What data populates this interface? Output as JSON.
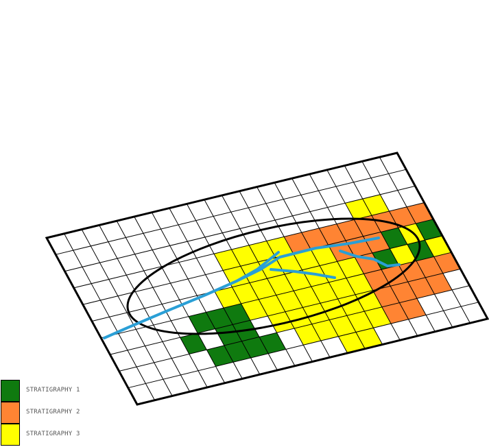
{
  "legend": [
    {
      "label": "STRATIGRAPHY 1",
      "color": "#0f7a0f"
    },
    {
      "label": "STRATIGRAPHY 2",
      "color": "#ff8433"
    },
    {
      "label": "STRATIGRAPHY 3",
      "color": "#ffff00"
    }
  ],
  "colors": {
    "grid_line": "#000000",
    "boundary": "#000000",
    "river": "#2a9fd6",
    "background": "#ffffff"
  },
  "grid": {
    "columns": 20,
    "rows": 10
  },
  "strata_cells": {
    "1": [
      [
        6,
        6
      ],
      [
        6,
        7
      ],
      [
        7,
        6
      ],
      [
        7,
        7
      ],
      [
        7,
        8
      ],
      [
        8,
        8
      ],
      [
        4,
        7
      ],
      [
        5,
        6
      ],
      [
        16,
        5
      ],
      [
        17,
        4
      ],
      [
        18,
        5
      ],
      [
        19,
        4
      ],
      [
        5,
        8
      ],
      [
        6,
        8
      ]
    ],
    "2": [
      [
        12,
        3
      ],
      [
        13,
        3
      ],
      [
        14,
        3
      ],
      [
        15,
        3
      ],
      [
        16,
        3
      ],
      [
        17,
        3
      ],
      [
        18,
        3
      ],
      [
        19,
        3
      ],
      [
        20,
        3
      ],
      [
        14,
        4
      ],
      [
        15,
        4
      ],
      [
        16,
        4
      ],
      [
        20,
        4
      ],
      [
        21,
        4
      ],
      [
        21,
        5
      ],
      [
        15,
        5
      ],
      [
        15,
        6
      ],
      [
        16,
        6
      ],
      [
        17,
        6
      ],
      [
        18,
        6
      ],
      [
        19,
        6
      ],
      [
        20,
        6
      ],
      [
        15,
        7
      ],
      [
        16,
        7
      ],
      [
        17,
        7
      ],
      [
        18,
        7
      ],
      [
        15,
        8
      ],
      [
        16,
        8
      ]
    ],
    "3": [
      [
        8,
        3
      ],
      [
        9,
        3
      ],
      [
        10,
        3
      ],
      [
        11,
        3
      ],
      [
        8,
        4
      ],
      [
        9,
        4
      ],
      [
        10,
        4
      ],
      [
        11,
        4
      ],
      [
        12,
        4
      ],
      [
        13,
        4
      ],
      [
        17,
        5
      ],
      [
        18,
        4
      ],
      [
        19,
        5
      ],
      [
        7,
        5
      ],
      [
        8,
        5
      ],
      [
        9,
        5
      ],
      [
        10,
        5
      ],
      [
        11,
        5
      ],
      [
        12,
        5
      ],
      [
        13,
        5
      ],
      [
        14,
        5
      ],
      [
        20,
        5
      ],
      [
        8,
        6
      ],
      [
        9,
        6
      ],
      [
        10,
        6
      ],
      [
        11,
        6
      ],
      [
        12,
        6
      ],
      [
        13,
        6
      ],
      [
        14,
        6
      ],
      [
        9,
        7
      ],
      [
        10,
        7
      ],
      [
        11,
        7
      ],
      [
        12,
        7
      ],
      [
        13,
        7
      ],
      [
        14,
        7
      ],
      [
        10,
        8
      ],
      [
        11,
        8
      ],
      [
        12,
        8
      ],
      [
        13,
        8
      ],
      [
        14,
        8
      ],
      [
        12,
        9
      ],
      [
        13,
        9
      ],
      [
        16,
        2
      ],
      [
        17,
        2
      ]
    ]
  }
}
